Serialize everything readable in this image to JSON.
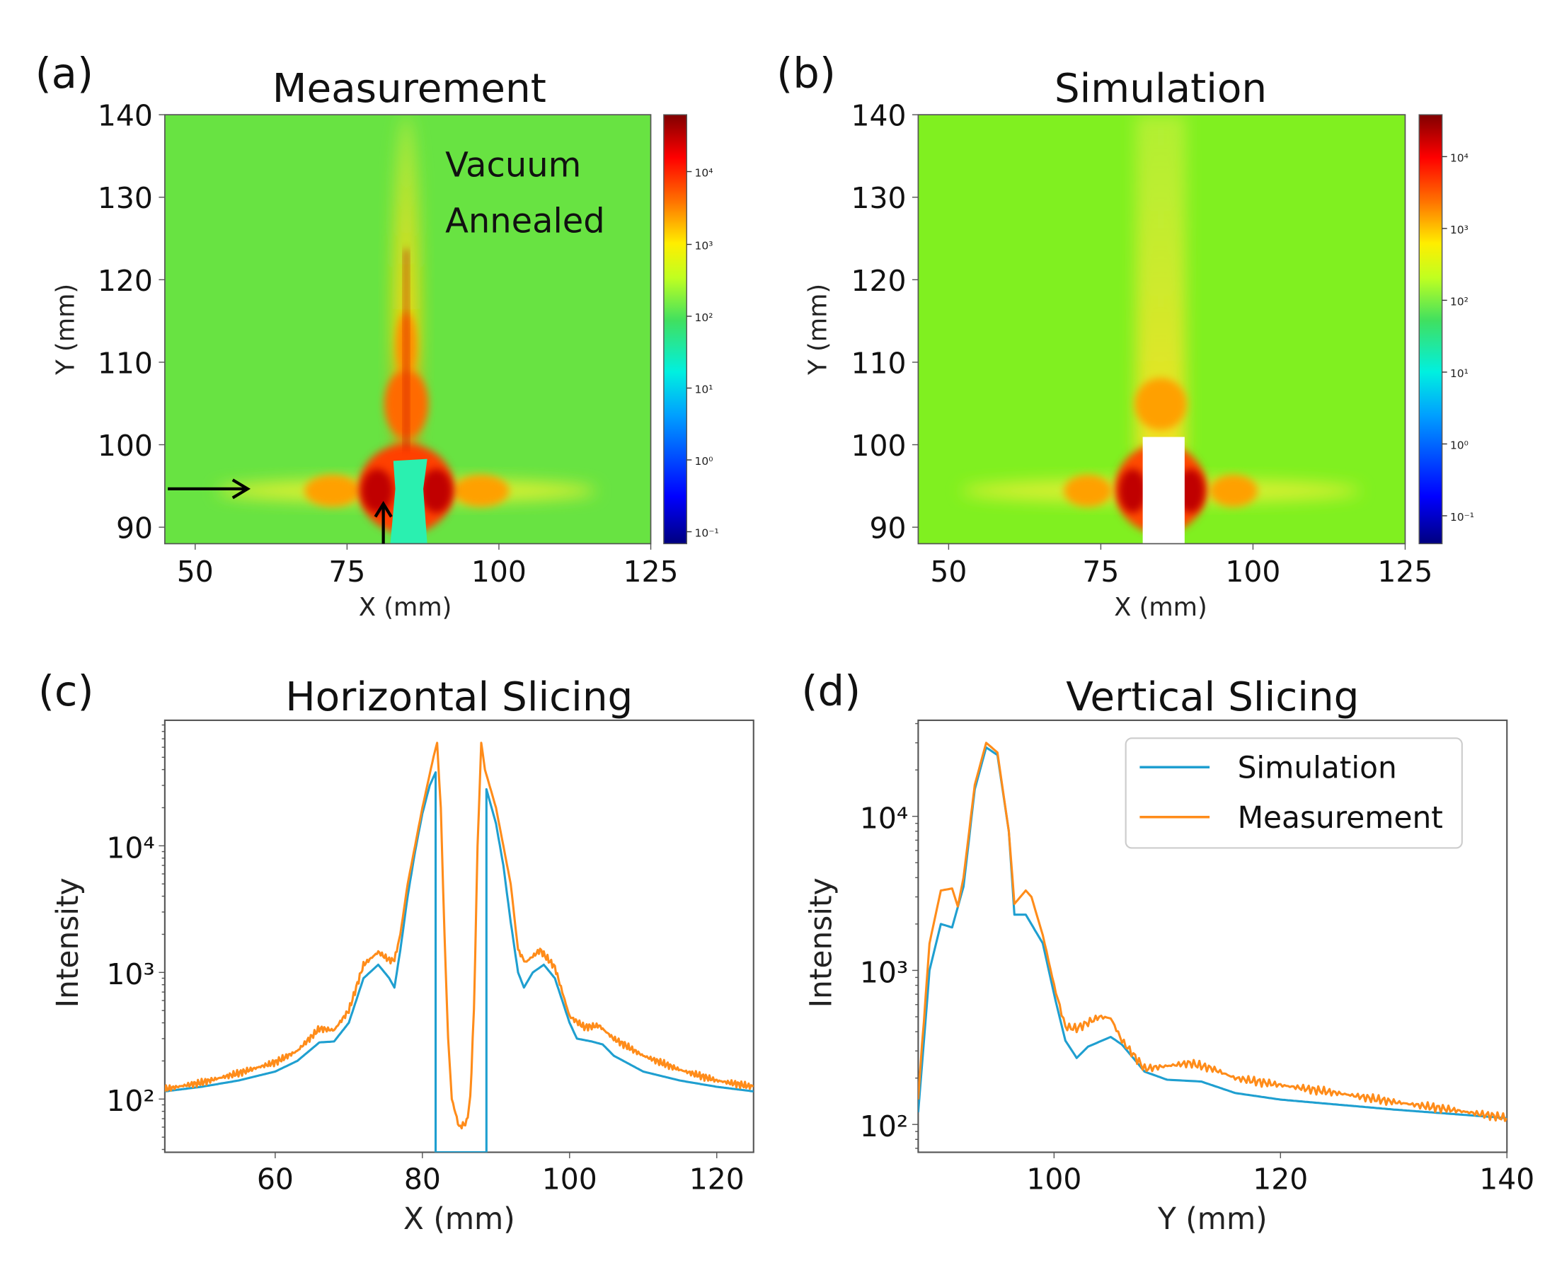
{
  "colors": {
    "simulation": "#1f9fd0",
    "measurement": "#ff8c1a",
    "axis": "#555555"
  },
  "panels": {
    "a": {
      "label": "(a)",
      "title": "Measurement",
      "xlabel": "X (mm)",
      "ylabel": "Y (mm)",
      "xticks": [
        "50",
        "75",
        "100",
        "125"
      ],
      "yticks": [
        "140",
        "130",
        "120",
        "110",
        "100",
        "90"
      ],
      "annotation": [
        "Vacuum",
        "Annealed"
      ],
      "colorbar_ticks": [
        "10⁴",
        "10³",
        "10²",
        "10¹",
        "10⁰",
        "10⁻¹"
      ]
    },
    "b": {
      "label": "(b)",
      "title": "Simulation",
      "xlabel": "X (mm)",
      "ylabel": "Y (mm)",
      "xticks": [
        "50",
        "75",
        "100",
        "125"
      ],
      "yticks": [
        "140",
        "130",
        "120",
        "110",
        "100",
        "90"
      ],
      "colorbar_ticks": [
        "10⁴",
        "10³",
        "10²",
        "10¹",
        "10⁰",
        "10⁻¹"
      ]
    },
    "c": {
      "label": "(c)"
    },
    "d": {
      "label": "(d)"
    }
  },
  "chart_data": [
    {
      "type": "line",
      "title": "Horizontal Slicing",
      "xlabel": "X (mm)",
      "ylabel": "Intensity",
      "yscale": "log",
      "xlim": [
        45,
        125
      ],
      "ylim": [
        38,
        98000
      ],
      "xticks": [
        60,
        80,
        100,
        120
      ],
      "yticks": [
        {
          "v": 100,
          "label": "10²"
        },
        {
          "v": 1000,
          "label": "10³"
        },
        {
          "v": 10000,
          "label": "10⁴"
        }
      ],
      "series": [
        {
          "name": "Simulation",
          "x": [
            45,
            50,
            55,
            60,
            63,
            66,
            68,
            70,
            72,
            74,
            75.5,
            76.2,
            77,
            78,
            79,
            80,
            81,
            81.8,
            81.8,
            88.7,
            88.7,
            90,
            91,
            92,
            93,
            93.8,
            95,
            96.5,
            98,
            100,
            101,
            103,
            104.5,
            106,
            110,
            115,
            120,
            125
          ],
          "y": [
            115,
            125,
            140,
            165,
            200,
            280,
            285,
            400,
            900,
            1150,
            900,
            760,
            1500,
            4000,
            9000,
            18000,
            30000,
            38000,
            1,
            1,
            28000,
            15000,
            7000,
            2500,
            1000,
            760,
            1000,
            1150,
            900,
            400,
            300,
            285,
            270,
            220,
            165,
            140,
            125,
            115
          ]
        },
        {
          "name": "Measurement",
          "x": [
            45,
            50,
            55,
            60,
            63,
            66,
            68,
            70,
            72,
            74,
            75.5,
            76.2,
            77,
            78,
            80,
            81.5,
            82,
            82.5,
            83,
            83.5,
            84,
            85,
            86,
            86.5,
            87,
            87.5,
            88,
            88.5,
            90,
            92,
            93,
            94,
            96,
            98,
            100,
            102,
            104,
            106,
            110,
            115,
            120,
            125
          ],
          "y": [
            120,
            135,
            160,
            195,
            240,
            360,
            350,
            500,
            1150,
            1450,
            1250,
            1250,
            2000,
            5000,
            20000,
            50000,
            65000,
            20000,
            2000,
            300,
            100,
            60,
            65,
            100,
            500,
            10000,
            65000,
            40000,
            20000,
            5000,
            1500,
            1200,
            1500,
            1100,
            450,
            370,
            380,
            300,
            220,
            170,
            140,
            125
          ]
        }
      ]
    },
    {
      "type": "line",
      "title": "Vertical Slicing",
      "xlabel": "Y (mm)",
      "ylabel": "Intensity",
      "yscale": "log",
      "xlim": [
        88,
        140
      ],
      "ylim": [
        66,
        42000
      ],
      "xticks": [
        100,
        120,
        140
      ],
      "yticks": [
        {
          "v": 100,
          "label": "10²"
        },
        {
          "v": 1000,
          "label": "10³"
        },
        {
          "v": 10000,
          "label": "10⁴"
        }
      ],
      "legend": {
        "position": "top-right",
        "entries": [
          "Simulation",
          "Measurement"
        ]
      },
      "series": [
        {
          "name": "Simulation",
          "x": [
            88,
            89,
            90,
            91,
            92,
            93,
            94,
            95,
            96,
            96.5,
            97.5,
            99,
            100,
            101,
            102,
            103,
            105,
            106,
            108,
            110,
            113,
            116,
            120,
            130,
            140
          ],
          "y": [
            120,
            1000,
            2000,
            1900,
            3500,
            15000,
            28000,
            25000,
            8000,
            2300,
            2300,
            1500,
            700,
            350,
            270,
            320,
            370,
            330,
            220,
            195,
            190,
            160,
            145,
            125,
            110
          ]
        },
        {
          "name": "Measurement",
          "x": [
            88,
            89,
            90,
            91,
            91.5,
            92,
            93,
            94,
            95,
            96,
            96.5,
            97.5,
            98,
            99,
            100,
            101,
            102,
            104,
            105,
            106,
            108,
            110,
            112,
            114,
            116,
            120,
            125,
            130,
            135,
            140
          ],
          "y": [
            150,
            1500,
            3300,
            3400,
            2600,
            4000,
            16000,
            30000,
            26000,
            8000,
            2700,
            3300,
            3000,
            1700,
            800,
            430,
            420,
            500,
            490,
            350,
            230,
            240,
            250,
            230,
            200,
            180,
            160,
            140,
            125,
            110
          ]
        }
      ]
    }
  ]
}
